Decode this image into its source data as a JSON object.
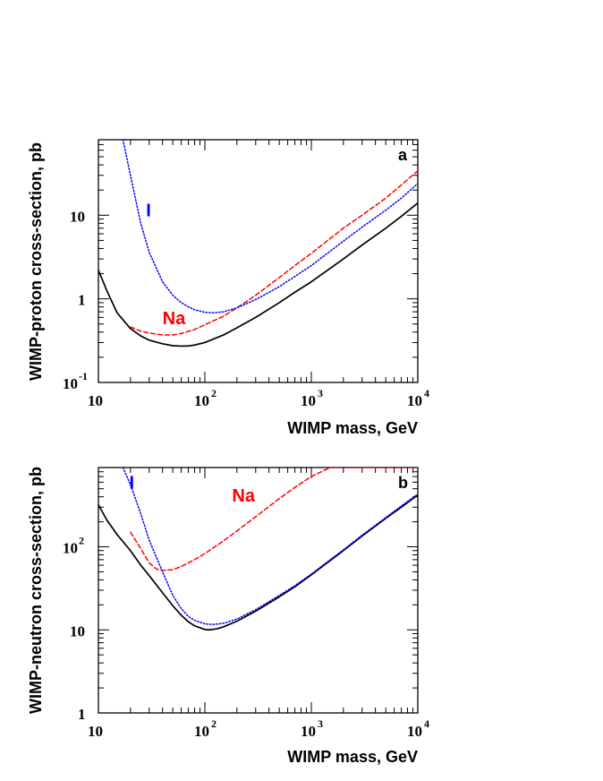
{
  "chart_data": [
    {
      "type": "line",
      "panel_label": "a",
      "xlabel": "WIMP mass, GeV",
      "ylabel": "WIMP-proton cross-section, pb",
      "xscale": "log",
      "yscale": "log",
      "xlim": [
        10,
        10000
      ],
      "ylim": [
        0.1,
        80
      ],
      "grid": false,
      "x_ticks": [
        {
          "base": "10",
          "exp": ""
        },
        {
          "base": "10",
          "exp": "2"
        },
        {
          "base": "10",
          "exp": "3"
        },
        {
          "base": "10",
          "exp": "4"
        }
      ],
      "y_ticks": [
        {
          "base": "10",
          "exp": "-1"
        },
        {
          "base": "1",
          "exp": ""
        },
        {
          "base": "10",
          "exp": ""
        }
      ],
      "series": [
        {
          "name": "",
          "color": "#000000",
          "style": "solid",
          "points": [
            [
              10,
              2.2
            ],
            [
              12,
              1.25
            ],
            [
              15,
              0.68
            ],
            [
              20,
              0.44
            ],
            [
              25,
              0.36
            ],
            [
              30,
              0.32
            ],
            [
              40,
              0.29
            ],
            [
              50,
              0.275
            ],
            [
              60,
              0.272
            ],
            [
              70,
              0.273
            ],
            [
              80,
              0.28
            ],
            [
              100,
              0.3
            ],
            [
              150,
              0.37
            ],
            [
              200,
              0.45
            ],
            [
              300,
              0.6
            ],
            [
              500,
              0.9
            ],
            [
              700,
              1.2
            ],
            [
              1000,
              1.6
            ],
            [
              2000,
              3.0
            ],
            [
              3000,
              4.4
            ],
            [
              5000,
              7.0
            ],
            [
              7000,
              9.7
            ],
            [
              10000,
              14
            ]
          ]
        },
        {
          "name": "Na",
          "color": "#ff0000",
          "style": "dashed",
          "points": [
            [
              20,
              0.46
            ],
            [
              25,
              0.41
            ],
            [
              30,
              0.39
            ],
            [
              40,
              0.37
            ],
            [
              50,
              0.37
            ],
            [
              60,
              0.385
            ],
            [
              80,
              0.43
            ],
            [
              100,
              0.49
            ],
            [
              150,
              0.62
            ],
            [
              200,
              0.78
            ],
            [
              300,
              1.1
            ],
            [
              500,
              1.8
            ],
            [
              700,
              2.5
            ],
            [
              1000,
              3.5
            ],
            [
              2000,
              7.0
            ],
            [
              3000,
              10
            ],
            [
              5000,
              16
            ],
            [
              7000,
              23
            ],
            [
              10000,
              34
            ]
          ]
        },
        {
          "name": "I",
          "color": "#0000ff",
          "style": "dotted",
          "points": [
            [
              17,
              80
            ],
            [
              20,
              30
            ],
            [
              25,
              8
            ],
            [
              30,
              3.6
            ],
            [
              40,
              1.6
            ],
            [
              50,
              1.1
            ],
            [
              60,
              0.9
            ],
            [
              70,
              0.8
            ],
            [
              80,
              0.74
            ],
            [
              100,
              0.69
            ],
            [
              120,
              0.68
            ],
            [
              150,
              0.7
            ],
            [
              200,
              0.78
            ],
            [
              300,
              0.98
            ],
            [
              500,
              1.4
            ],
            [
              700,
              1.85
            ],
            [
              1000,
              2.5
            ],
            [
              2000,
              4.9
            ],
            [
              3000,
              7.2
            ],
            [
              5000,
              11.5
            ],
            [
              7000,
              16
            ],
            [
              10000,
              24
            ]
          ]
        }
      ]
    },
    {
      "type": "line",
      "panel_label": "b",
      "xlabel": "WIMP mass, GeV",
      "ylabel": "WIMP-neutron cross-section, pb",
      "xscale": "log",
      "yscale": "log",
      "xlim": [
        10,
        10000
      ],
      "ylim": [
        1,
        900
      ],
      "grid": false,
      "x_ticks": [
        {
          "base": "10",
          "exp": ""
        },
        {
          "base": "10",
          "exp": "2"
        },
        {
          "base": "10",
          "exp": "3"
        },
        {
          "base": "10",
          "exp": "4"
        }
      ],
      "y_ticks": [
        {
          "base": "1",
          "exp": ""
        },
        {
          "base": "10",
          "exp": ""
        },
        {
          "base": "10",
          "exp": "2"
        }
      ],
      "series": [
        {
          "name": "",
          "color": "#000000",
          "style": "solid",
          "points": [
            [
              10,
              320
            ],
            [
              12,
              210
            ],
            [
              15,
              140
            ],
            [
              20,
              90
            ],
            [
              25,
              60
            ],
            [
              30,
              45
            ],
            [
              40,
              28
            ],
            [
              50,
              19.5
            ],
            [
              60,
              15
            ],
            [
              70,
              12.5
            ],
            [
              80,
              11.2
            ],
            [
              100,
              10.1
            ],
            [
              110,
              10
            ],
            [
              130,
              10.3
            ],
            [
              150,
              10.9
            ],
            [
              200,
              12.7
            ],
            [
              300,
              16.8
            ],
            [
              500,
              25
            ],
            [
              700,
              33
            ],
            [
              1000,
              46
            ],
            [
              2000,
              90
            ],
            [
              3000,
              135
            ],
            [
              5000,
              220
            ],
            [
              7000,
              300
            ],
            [
              10000,
              420
            ]
          ]
        },
        {
          "name": "Na",
          "color": "#ff0000",
          "style": "dashed",
          "points": [
            [
              20,
              150
            ],
            [
              25,
              95
            ],
            [
              30,
              64
            ],
            [
              35,
              54
            ],
            [
              40,
              52
            ],
            [
              50,
              53
            ],
            [
              60,
              58
            ],
            [
              80,
              70
            ],
            [
              100,
              83
            ],
            [
              150,
              118
            ],
            [
              200,
              155
            ],
            [
              300,
              230
            ],
            [
              500,
              380
            ],
            [
              700,
              520
            ],
            [
              1000,
              700
            ],
            [
              1500,
              900
            ],
            [
              10000,
              900
            ]
          ]
        },
        {
          "name": "I",
          "color": "#0000ff",
          "style": "dotted",
          "points": [
            [
              17,
              900
            ],
            [
              20,
              560
            ],
            [
              25,
              250
            ],
            [
              30,
              120
            ],
            [
              40,
              50
            ],
            [
              50,
              26
            ],
            [
              60,
              18
            ],
            [
              70,
              14.5
            ],
            [
              80,
              13
            ],
            [
              100,
              11.8
            ],
            [
              120,
              11.6
            ],
            [
              150,
              12
            ],
            [
              200,
              13.5
            ],
            [
              300,
              17.5
            ],
            [
              500,
              26
            ],
            [
              700,
              34
            ],
            [
              1000,
              47
            ],
            [
              2000,
              92
            ],
            [
              3000,
              138
            ],
            [
              5000,
              225
            ],
            [
              7000,
              310
            ],
            [
              10000,
              430
            ]
          ]
        }
      ]
    }
  ]
}
